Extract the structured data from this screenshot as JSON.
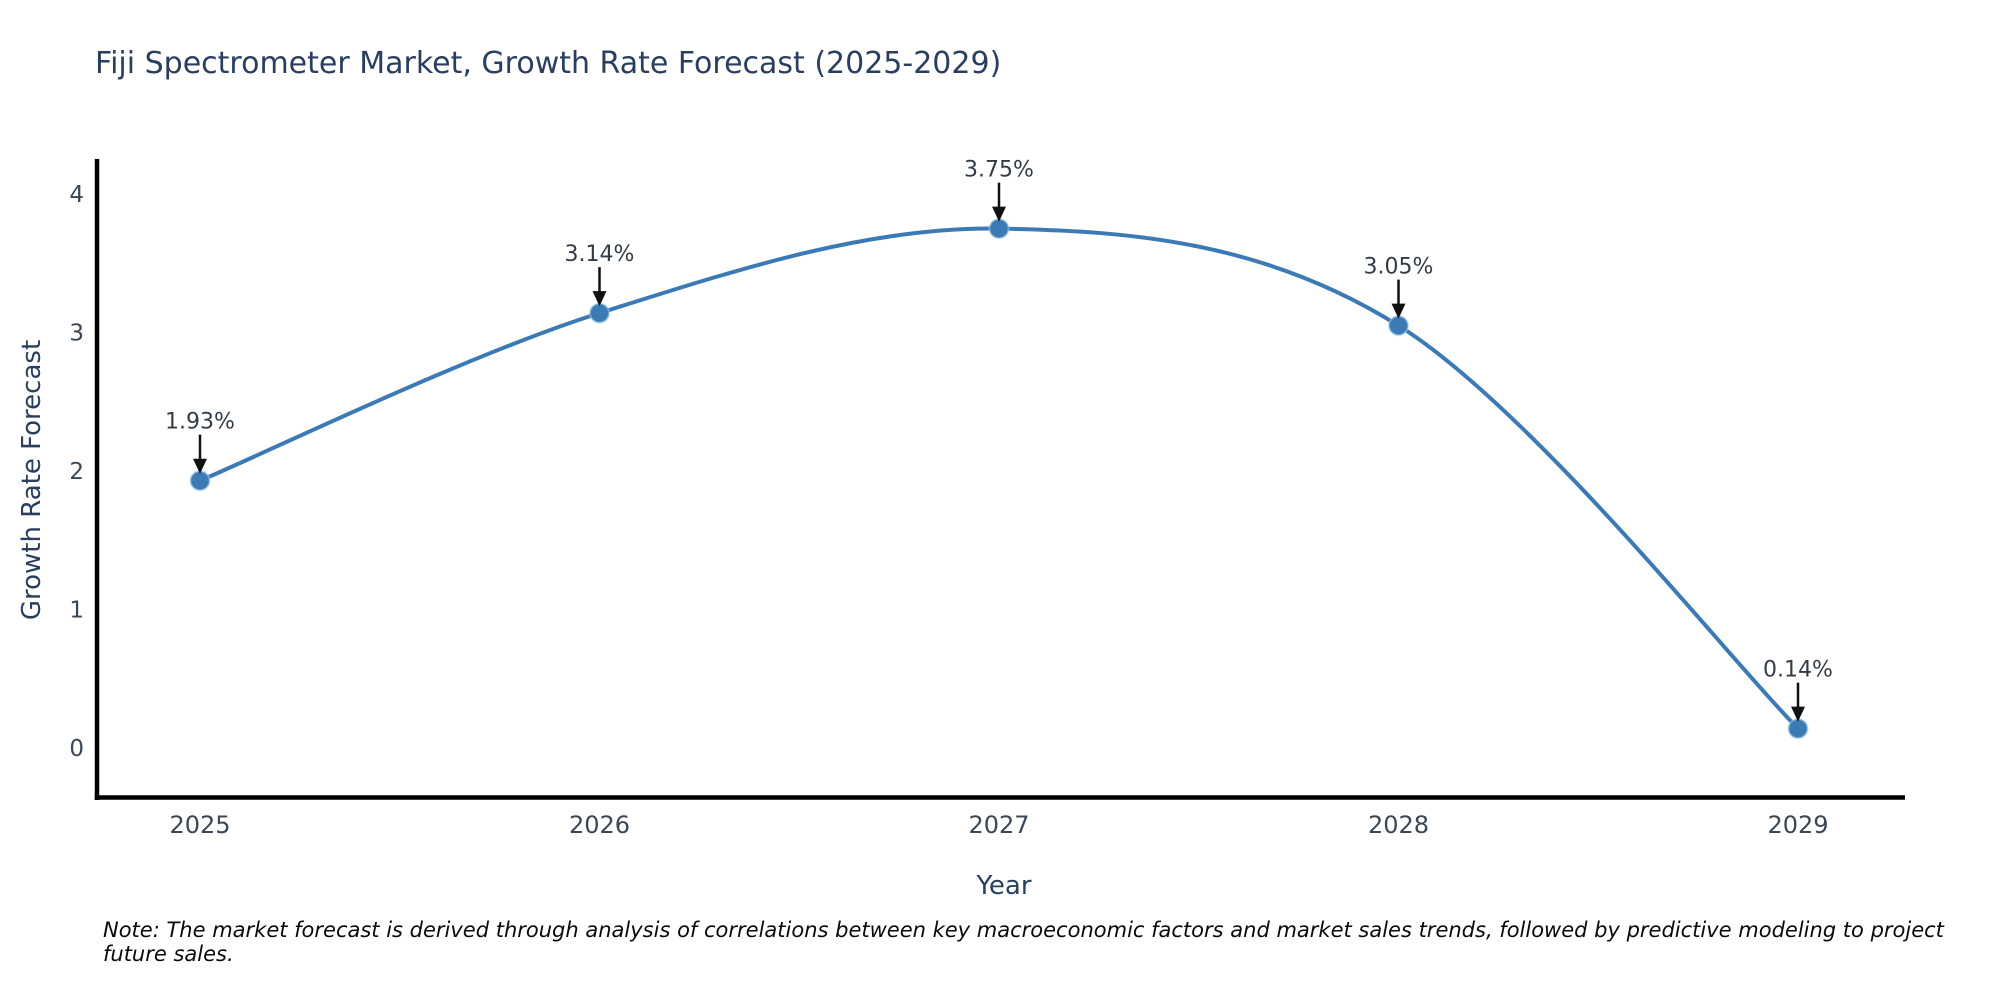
{
  "title": "Fiji Spectrometer Market, Growth Rate Forecast (2025-2029)",
  "note": "Note: The market forecast is derived through analysis of correlations between key macroeconomic factors and market sales trends, followed by predictive modeling to project future sales.",
  "colors": {
    "line": "#3b7ab5",
    "marker": "#3b7ab5",
    "marker_halo": "#9dc4e4",
    "axis_line": "#000000",
    "title_text": "#2a3f5f",
    "axis_title_text": "#2a3f5f",
    "tick_text": "#3b4754",
    "annotation_text": "#333c46",
    "arrow": "#111111",
    "background": "#ffffff"
  },
  "chart_data": {
    "type": "line",
    "title": "Fiji Spectrometer Market, Growth Rate Forecast (2025-2029)",
    "xlabel": "Year",
    "ylabel": "Growth Rate Forecast",
    "x": [
      2025,
      2026,
      2027,
      2028,
      2029
    ],
    "series": [
      {
        "name": "Growth Rate Forecast",
        "values": [
          1.93,
          3.14,
          3.75,
          3.05,
          0.14
        ],
        "point_labels": [
          "1.93%",
          "3.14%",
          "3.75%",
          "3.05%",
          "0.14%"
        ]
      }
    ],
    "x_ticks": [
      "2025",
      "2026",
      "2027",
      "2028",
      "2029"
    ],
    "y_ticks": [
      0,
      1,
      2,
      3,
      4
    ],
    "xlim": [
      2024.74,
      2029.27
    ],
    "ylim": [
      -0.38,
      4.26
    ],
    "line_shape": "spline",
    "grid": false,
    "legend_position": "none",
    "markers": true,
    "annotations": "each point labeled with its value and a downward arrow"
  }
}
